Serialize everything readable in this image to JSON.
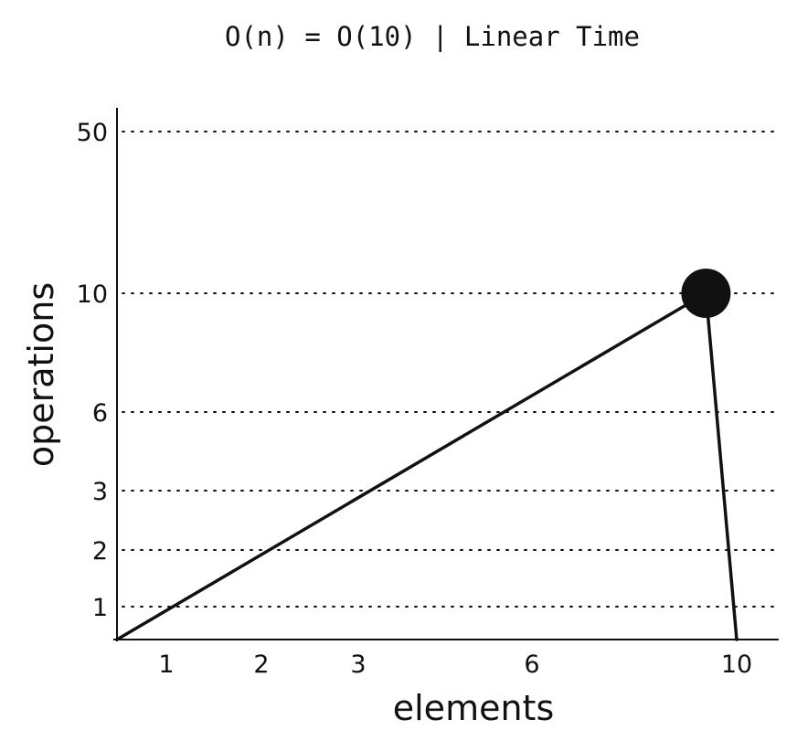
{
  "chart_data": {
    "type": "line",
    "title": "O(n) = O(10) | Linear Time",
    "xlabel": "elements",
    "ylabel": "operations",
    "x_ticks": [
      {
        "value": 1,
        "label": "1"
      },
      {
        "value": 2,
        "label": "2"
      },
      {
        "value": 3,
        "label": "3"
      },
      {
        "value": 6,
        "label": "6"
      },
      {
        "value": 10,
        "label": "10"
      }
    ],
    "y_ticks": [
      {
        "value": 1,
        "label": "1"
      },
      {
        "value": 2,
        "label": "2"
      },
      {
        "value": 3,
        "label": "3"
      },
      {
        "value": 6,
        "label": "6"
      },
      {
        "value": 10,
        "label": "10"
      },
      {
        "value": 50,
        "label": "50"
      }
    ],
    "series": [
      {
        "points": [
          {
            "x": 0,
            "y": 0
          },
          {
            "x": 9.4,
            "y": 10
          },
          {
            "x": 10,
            "y": 0
          }
        ],
        "marker_at": {
          "x": 9.4,
          "y": 10
        }
      }
    ],
    "grid": {
      "y": true,
      "x": false,
      "style": "dotted"
    },
    "colors": {
      "line": "#111111",
      "background": "#ffffff"
    }
  }
}
